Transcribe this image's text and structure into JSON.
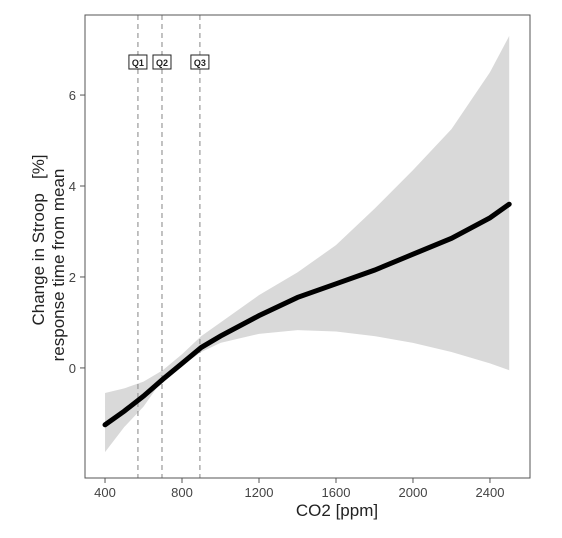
{
  "chart_data": {
    "type": "line",
    "x_label": "CO2 [ppm]",
    "y_label_lines": [
      "Change in Stroop   [%]",
      "response time from mean"
    ],
    "x": [
      400,
      500,
      600,
      700,
      800,
      900,
      1000,
      1200,
      1400,
      1600,
      1800,
      2000,
      2200,
      2400,
      2500
    ],
    "fit": [
      -1.25,
      -0.95,
      -0.62,
      -0.25,
      0.1,
      0.45,
      0.7,
      1.15,
      1.55,
      1.85,
      2.15,
      2.5,
      2.85,
      3.3,
      3.6
    ],
    "lower": [
      -1.85,
      -1.3,
      -0.85,
      -0.25,
      0.05,
      0.35,
      0.55,
      0.75,
      0.83,
      0.8,
      0.7,
      0.55,
      0.35,
      0.1,
      -0.05
    ],
    "upper": [
      -0.55,
      -0.45,
      -0.3,
      -0.05,
      0.3,
      0.7,
      1.0,
      1.6,
      2.1,
      2.7,
      3.5,
      4.35,
      5.25,
      6.5,
      7.3
    ],
    "line_color": "#000000",
    "band_color": "#d9d9d9",
    "vlines": [
      {
        "value": 571,
        "label": "Q1"
      },
      {
        "value": 696,
        "label": "Q2"
      },
      {
        "value": 893,
        "label": "Q3"
      }
    ],
    "xlim": [
      296,
      2608
    ],
    "ylim": [
      -2.42,
      7.76
    ],
    "xticks": [
      400,
      800,
      1200,
      1600,
      2000,
      2400
    ],
    "yticks": [
      0,
      2,
      4,
      6
    ]
  }
}
